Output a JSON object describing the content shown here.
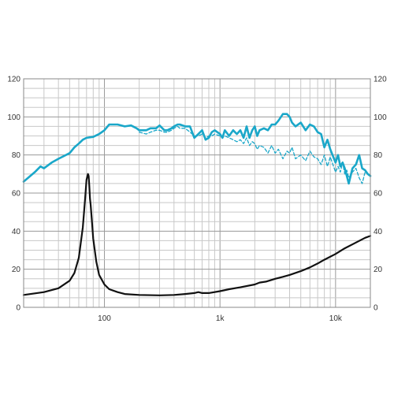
{
  "chart_data": {
    "type": "line",
    "x_scale": "log",
    "xlim": [
      20,
      20000
    ],
    "ylim": [
      0,
      120
    ],
    "grid": true,
    "x_tick_labels": [
      {
        "value": 100,
        "label": "100"
      },
      {
        "value": 1000,
        "label": "1k"
      },
      {
        "value": 10000,
        "label": "10k"
      }
    ],
    "y_ticks": [
      0,
      20,
      40,
      60,
      80,
      100,
      120
    ],
    "series": [
      {
        "style": "solid",
        "color": "#1aa7c9",
        "x": [
          20,
          25,
          28,
          30,
          35,
          40,
          50,
          55,
          60,
          65,
          70,
          80,
          90,
          100,
          110,
          130,
          150,
          170,
          190,
          200,
          230,
          250,
          280,
          300,
          330,
          350,
          380,
          400,
          430,
          450,
          500,
          550,
          600,
          650,
          700,
          750,
          800,
          850,
          900,
          1000,
          1050,
          1100,
          1200,
          1300,
          1400,
          1500,
          1600,
          1700,
          1800,
          1900,
          2000,
          2100,
          2200,
          2400,
          2600,
          2800,
          3000,
          3200,
          3500,
          3800,
          4000,
          4200,
          4500,
          5000,
          5500,
          6000,
          6500,
          7000,
          7500,
          8000,
          8500,
          9000,
          10000,
          10500,
          11000,
          11500,
          12000,
          12500,
          13000,
          14000,
          15000,
          16000,
          17000,
          18000,
          19000,
          20000
        ],
        "values": [
          66,
          71,
          74,
          73,
          76,
          78,
          81,
          84,
          86,
          88,
          89,
          89.5,
          91,
          93,
          96,
          96,
          95,
          95.5,
          94,
          93,
          93,
          94,
          94,
          95.5,
          93,
          93,
          94,
          95,
          96,
          96,
          95,
          95,
          89,
          91,
          93,
          88,
          89,
          92,
          93,
          91,
          89,
          93,
          90,
          93,
          91,
          93,
          89,
          95,
          89,
          93,
          95,
          90,
          93,
          94,
          93,
          96,
          96,
          98,
          101.5,
          101.5,
          100,
          97,
          95,
          97,
          93,
          96,
          95,
          92,
          91,
          84,
          88,
          83,
          76,
          80,
          74,
          76,
          73,
          69,
          65,
          73,
          75,
          80,
          73,
          72,
          70,
          69
        ]
      },
      {
        "style": "dashed",
        "color": "#1aa7c9",
        "x": [
          200,
          230,
          250,
          280,
          300,
          330,
          350,
          380,
          400,
          430,
          450,
          500,
          550,
          600,
          650,
          700,
          750,
          800,
          850,
          900,
          1000,
          1050,
          1100,
          1200,
          1300,
          1400,
          1500,
          1600,
          1700,
          1800,
          1900,
          2000,
          2100,
          2200,
          2400,
          2600,
          2800,
          3000,
          3200,
          3500,
          3800,
          4000,
          4200,
          4500,
          5000,
          5500,
          6000,
          6500,
          7000,
          7500,
          8000,
          8500,
          9000,
          10000,
          10500,
          11000,
          11500,
          12000,
          12500,
          13000,
          14000,
          15000,
          16000,
          17000,
          18000,
          19000,
          20000
        ],
        "values": [
          92,
          91,
          92,
          93,
          93,
          92,
          92,
          93,
          94,
          95,
          94,
          94,
          92,
          90,
          90,
          91,
          89,
          90,
          90,
          91,
          90,
          89,
          90,
          89,
          88,
          87,
          88,
          86,
          89,
          85,
          87,
          86,
          83,
          85,
          84,
          81,
          85,
          81,
          83,
          78,
          82,
          81,
          84,
          78,
          80,
          77,
          82,
          79,
          78,
          75,
          80,
          74,
          79,
          71,
          74,
          71,
          76,
          70,
          72,
          68,
          71,
          73,
          68,
          65,
          71,
          70,
          69
        ]
      },
      {
        "style": "solid",
        "color": "#111111",
        "x": [
          20,
          30,
          40,
          50,
          55,
          60,
          65,
          68,
          70,
          72,
          73,
          74,
          75,
          76,
          78,
          80,
          85,
          90,
          100,
          110,
          130,
          150,
          200,
          300,
          400,
          500,
          600,
          650,
          700,
          800,
          1000,
          1200,
          1500,
          2000,
          2200,
          2500,
          3000,
          3500,
          4000,
          5000,
          6000,
          7000,
          8000,
          10000,
          12000,
          15000,
          18000,
          20000
        ],
        "values": [
          6.5,
          8,
          10,
          14,
          18,
          26,
          42,
          57,
          67,
          70,
          69,
          64,
          57,
          54,
          45,
          36,
          24,
          17,
          12,
          9.5,
          8,
          7,
          6.5,
          6.3,
          6.5,
          7,
          7.5,
          8,
          7.5,
          7.5,
          8.5,
          9.5,
          10.5,
          12,
          13,
          13.5,
          15,
          16,
          17,
          19,
          21,
          23,
          25,
          28,
          31,
          34,
          36.5,
          37.5
        ]
      }
    ]
  }
}
